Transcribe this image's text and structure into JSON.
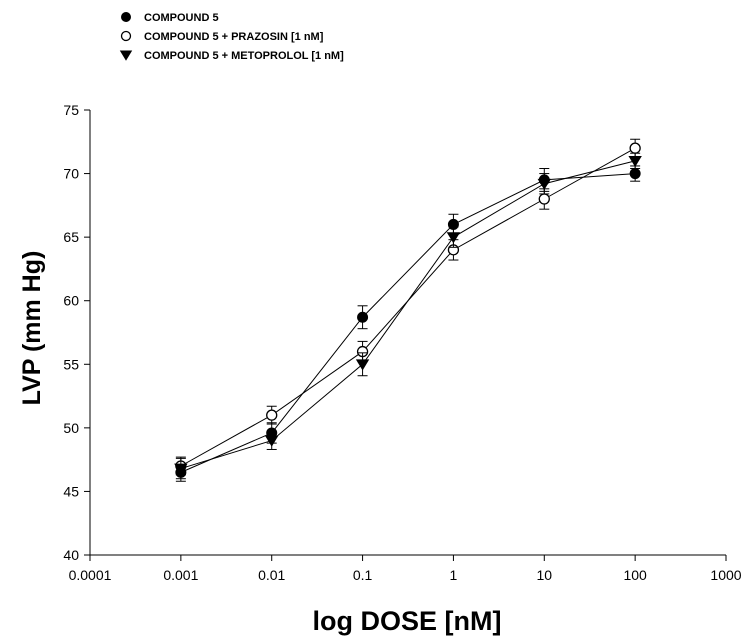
{
  "chart_data": {
    "type": "scatter",
    "xlabel": "log DOSE [nM]",
    "ylabel": "LVP (mm Hg)",
    "xscale": "log",
    "xlim": [
      0.0001,
      1000
    ],
    "ylim": [
      40,
      75
    ],
    "x_ticks": [
      "0.0001",
      "0.001",
      "0.01",
      "0.1",
      "1",
      "10",
      "100",
      "1000"
    ],
    "y_ticks": [
      "40",
      "45",
      "50",
      "55",
      "60",
      "65",
      "70",
      "75"
    ],
    "grid": false,
    "legend_position": "top-left",
    "x": [
      0.001,
      0.01,
      0.1,
      1,
      10,
      100
    ],
    "series": [
      {
        "name": "COMPOUND 5",
        "marker": "filled-circle",
        "values": [
          46.5,
          49.6,
          58.7,
          66.0,
          69.5,
          70.0
        ],
        "errors": [
          0.7,
          0.8,
          0.9,
          0.8,
          0.9,
          0.6
        ]
      },
      {
        "name": "COMPOUND 5 + PRAZOSIN [1 nM]",
        "marker": "open-circle",
        "values": [
          47.0,
          51.0,
          56.0,
          64.0,
          68.0,
          72.0
        ],
        "errors": [
          0.7,
          0.7,
          0.8,
          0.8,
          0.8,
          0.7
        ]
      },
      {
        "name": "COMPOUND 5 + METOPROLOL [1 nM]",
        "marker": "filled-triangle-down",
        "values": [
          46.8,
          49.0,
          55.0,
          65.0,
          69.2,
          71.0
        ],
        "errors": [
          0.8,
          0.7,
          0.9,
          0.8,
          0.8,
          0.6
        ]
      }
    ],
    "colors": {
      "line": "#000000",
      "marker": "#000000",
      "open_fill": "#ffffff"
    }
  }
}
